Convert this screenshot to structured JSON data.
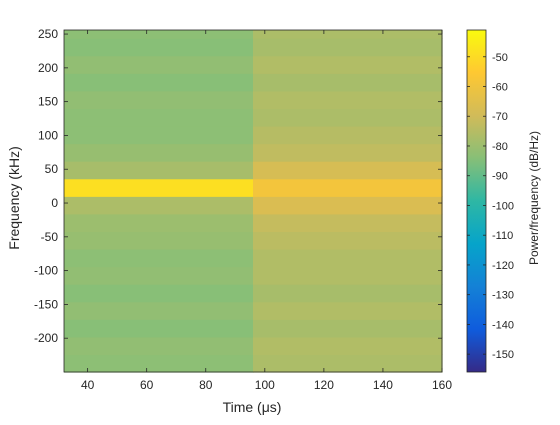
{
  "chart_data": {
    "type": "heatmap",
    "title": "",
    "xlabel": "Time (μs)",
    "ylabel": "Frequency (kHz)",
    "xlim": [
      32,
      160
    ],
    "ylim": [
      -250,
      256
    ],
    "x_ticks": [
      40,
      60,
      80,
      100,
      120,
      140,
      160
    ],
    "y_ticks": [
      -200,
      -150,
      -100,
      -50,
      0,
      50,
      100,
      150,
      200,
      250
    ],
    "colorbar": {
      "label": "Power/frequency (dB/Hz)",
      "range": [
        -156,
        -41
      ],
      "ticks": [
        -150,
        -140,
        -130,
        -120,
        -110,
        -100,
        -90,
        -80,
        -70,
        -60,
        -50
      ],
      "colormap": "parula"
    },
    "time_segments": [
      {
        "t_start": 32,
        "t_end": 96
      },
      {
        "t_start": 96,
        "t_end": 160
      }
    ],
    "frequency_bin_edges": [
      -250,
      -224,
      -198,
      -172,
      -146,
      -120,
      -94,
      -68,
      -42,
      -16,
      10,
      36,
      62,
      88,
      114,
      140,
      166,
      192,
      218,
      244,
      256
    ],
    "power_db": [
      [
        -83,
        -82,
        -84,
        -82,
        -84,
        -82,
        -83,
        -81,
        -80,
        -77,
        -49,
        -78,
        -81,
        -83,
        -83,
        -82,
        -84,
        -82,
        -84,
        -83
      ],
      [
        -77,
        -76,
        -78,
        -76,
        -78,
        -76,
        -76,
        -74,
        -72,
        -67,
        -59,
        -68,
        -73,
        -75,
        -77,
        -76,
        -78,
        -76,
        -78,
        -77
      ]
    ]
  }
}
